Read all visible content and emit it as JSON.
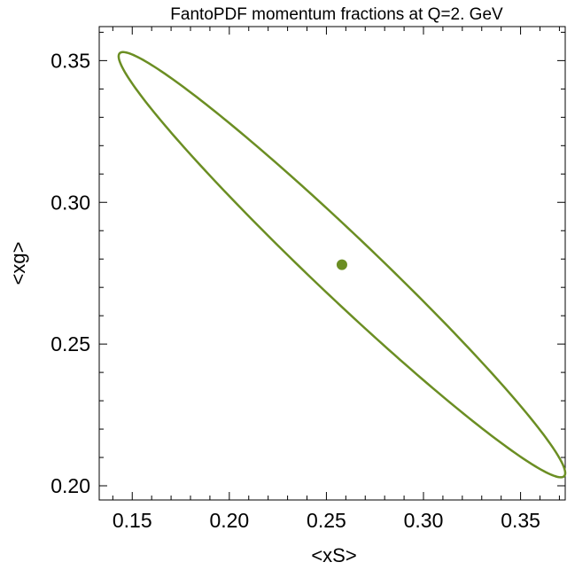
{
  "chart_data": {
    "type": "scatter",
    "title": "FantoPDF momentum fractions at Q=2. GeV",
    "xlabel": "<xS>",
    "ylabel": "<xg>",
    "xlim": [
      0.133,
      0.373
    ],
    "ylim": [
      0.195,
      0.362
    ],
    "xticks": [
      "0.15",
      "0.20",
      "0.25",
      "0.30",
      "0.35"
    ],
    "yticks": [
      "0.20",
      "0.25",
      "0.30",
      "0.35"
    ],
    "color": "#6b8e23",
    "central_point": {
      "x": 0.258,
      "y": 0.278
    },
    "ellipse": {
      "center": {
        "x": 0.258,
        "y": 0.278
      },
      "x_range": [
        0.142,
        0.372
      ],
      "y_range": [
        0.203,
        0.353
      ],
      "correlation": -0.98
    },
    "grid": false,
    "legend": "none"
  }
}
